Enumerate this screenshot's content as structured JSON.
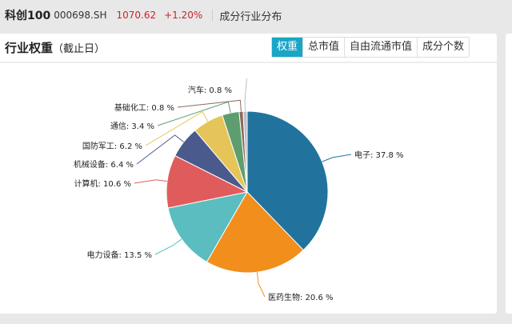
{
  "header": {
    "name": "科创100",
    "code": "000698.SH",
    "price": "1070.62",
    "change": "+1.20%",
    "section": "成分行业分布"
  },
  "card": {
    "title": "行业权重",
    "subtitle": "（截止日）",
    "tabs": [
      {
        "label": "权重",
        "active": true
      },
      {
        "label": "总市值"
      },
      {
        "label": "自由流通市值"
      },
      {
        "label": "成分个数"
      }
    ]
  },
  "chart_data": {
    "type": "pie",
    "unit": "%",
    "slices": [
      {
        "name": "电子",
        "value": 37.8,
        "color": "#21739e",
        "label": "电子: 37.8 %"
      },
      {
        "name": "医药生物",
        "value": 20.6,
        "color": "#f28e1c",
        "label": "医药生物: 20.6 %"
      },
      {
        "name": "电力设备",
        "value": 13.5,
        "color": "#5bbdbf",
        "label": "电力设备: 13.5 %"
      },
      {
        "name": "计算机",
        "value": 10.6,
        "color": "#e05c5c",
        "label": "计算机: 10.6 %"
      },
      {
        "name": "机械设备",
        "value": 6.4,
        "color": "#4b5a8c",
        "label": "机械设备: 6.4 %"
      },
      {
        "name": "国防军工",
        "value": 6.2,
        "color": "#e5c55a",
        "label": "国防军工: 6.2 %"
      },
      {
        "name": "通信",
        "value": 3.4,
        "color": "#5e9e6e",
        "label": "通信: 3.4 %"
      },
      {
        "name": "基础化工",
        "value": 0.8,
        "color": "#8d6a5b",
        "label": "基础化工: 0.8 %"
      },
      {
        "name": "汽车",
        "value": 0.8,
        "color": "#b8c0c8",
        "label": "汽车: 0.8 %"
      }
    ]
  }
}
